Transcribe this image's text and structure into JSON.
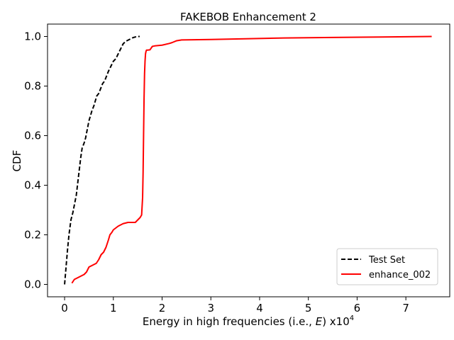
{
  "chart_data": {
    "type": "line",
    "title": "FAKEBOB Enhancement 2",
    "xlabel_prefix": "Energy in high frequencies (i.e., ",
    "xlabel_var": "E",
    "xlabel_suffix": ") x10",
    "xlabel_exp": "4",
    "ylabel": "CDF",
    "xlim": [
      -0.35,
      7.9
    ],
    "ylim": [
      -0.05,
      1.05
    ],
    "xticks": [
      0,
      1,
      2,
      3,
      4,
      5,
      6,
      7
    ],
    "yticks": [
      0.0,
      0.2,
      0.4,
      0.6,
      0.8,
      1.0
    ],
    "xtick_labels": [
      "0",
      "1",
      "2",
      "3",
      "4",
      "5",
      "6",
      "7"
    ],
    "ytick_labels": [
      "0.0",
      "0.2",
      "0.4",
      "0.6",
      "0.8",
      "1.0"
    ],
    "grid": false,
    "legend_position": "lower-right",
    "series": [
      {
        "name": "Test Set",
        "color": "#000000",
        "dash": "dashed",
        "x": [
          0.0,
          0.03,
          0.06,
          0.09,
          0.13,
          0.17,
          0.2,
          0.24,
          0.27,
          0.3,
          0.33,
          0.36,
          0.4,
          0.43,
          0.46,
          0.5,
          0.53,
          0.56,
          0.6,
          0.63,
          0.66,
          0.7,
          0.74,
          0.78,
          0.82,
          0.86,
          0.9,
          0.95,
          1.0,
          1.05,
          1.1,
          1.15,
          1.2,
          1.25,
          1.3,
          1.35,
          1.4,
          1.45,
          1.5,
          1.54
        ],
        "y": [
          0.0,
          0.07,
          0.14,
          0.2,
          0.26,
          0.29,
          0.32,
          0.36,
          0.41,
          0.46,
          0.51,
          0.55,
          0.57,
          0.59,
          0.62,
          0.66,
          0.68,
          0.7,
          0.72,
          0.74,
          0.76,
          0.77,
          0.79,
          0.81,
          0.82,
          0.84,
          0.86,
          0.88,
          0.9,
          0.91,
          0.93,
          0.95,
          0.97,
          0.98,
          0.985,
          0.99,
          0.995,
          0.998,
          1.0,
          1.0
        ]
      },
      {
        "name": "enhance_002",
        "color": "#ff0000",
        "dash": "solid",
        "x": [
          0.15,
          0.2,
          0.3,
          0.4,
          0.45,
          0.5,
          0.55,
          0.65,
          0.7,
          0.75,
          0.8,
          0.85,
          0.9,
          0.93,
          0.97,
          1.0,
          1.1,
          1.2,
          1.3,
          1.45,
          1.55,
          1.58,
          1.6,
          1.61,
          1.62,
          1.63,
          1.64,
          1.65,
          1.66,
          1.67,
          1.68,
          1.7,
          1.75,
          1.8,
          1.85,
          2.0,
          2.15,
          2.2,
          2.3,
          2.4,
          3.0,
          4.5,
          5.5,
          6.5,
          7.53
        ],
        "y": [
          0.005,
          0.02,
          0.03,
          0.04,
          0.05,
          0.07,
          0.075,
          0.085,
          0.1,
          0.12,
          0.13,
          0.15,
          0.18,
          0.2,
          0.21,
          0.22,
          0.235,
          0.245,
          0.25,
          0.25,
          0.27,
          0.28,
          0.35,
          0.45,
          0.6,
          0.75,
          0.85,
          0.9,
          0.93,
          0.94,
          0.945,
          0.945,
          0.946,
          0.96,
          0.962,
          0.965,
          0.972,
          0.975,
          0.983,
          0.986,
          0.988,
          0.994,
          0.996,
          0.998,
          1.0
        ]
      }
    ]
  }
}
